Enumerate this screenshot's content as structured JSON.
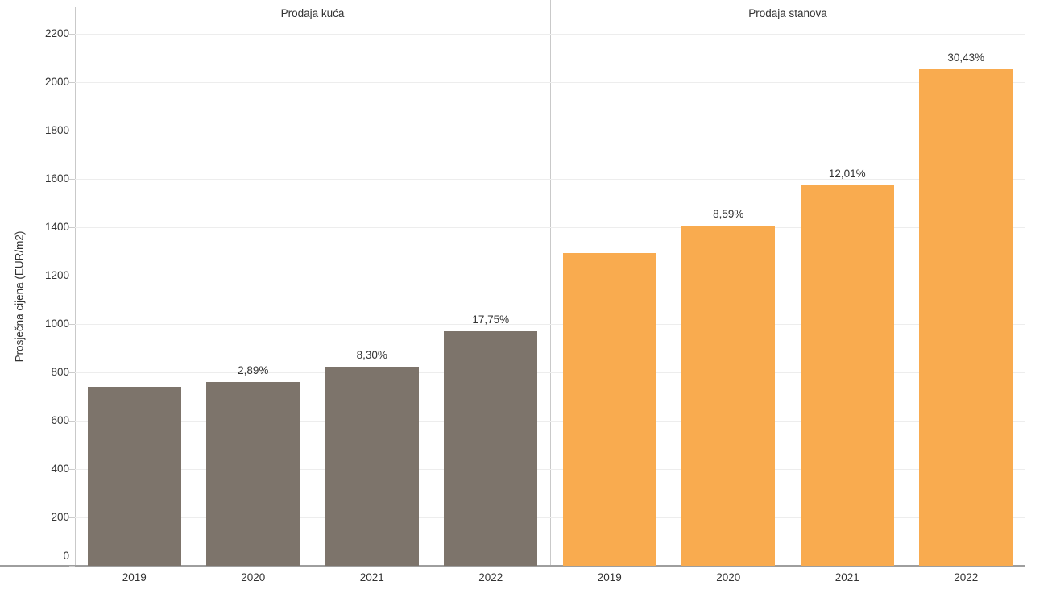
{
  "chart_data": {
    "type": "bar",
    "ylabel": "Prosječna cijena (EUR/m2)",
    "ylim": [
      0,
      2230
    ],
    "yticks": [
      0,
      200,
      400,
      600,
      800,
      1000,
      1200,
      1400,
      1600,
      1800,
      2000,
      2200
    ],
    "grid": true,
    "categories": [
      "2019",
      "2020",
      "2021",
      "2022"
    ],
    "panels": [
      {
        "title": "Prodaja kuća",
        "color": "#7d746b",
        "values": [
          740,
          761,
          824,
          970
        ],
        "bar_labels": [
          "",
          "2,89%",
          "8,30%",
          "17,75%"
        ]
      },
      {
        "title": "Prodaja stanova",
        "color": "#f9ab4f",
        "values": [
          1295,
          1406,
          1575,
          2054
        ],
        "bar_labels": [
          "",
          "8,59%",
          "12,01%",
          "30,43%"
        ]
      }
    ],
    "style": {
      "text_color": "#333333",
      "grid_color": "#ededed",
      "border_color": "#c9c9c9",
      "axis_rule_color": "#9e9e9e",
      "tick_color": "#cccccc"
    }
  }
}
